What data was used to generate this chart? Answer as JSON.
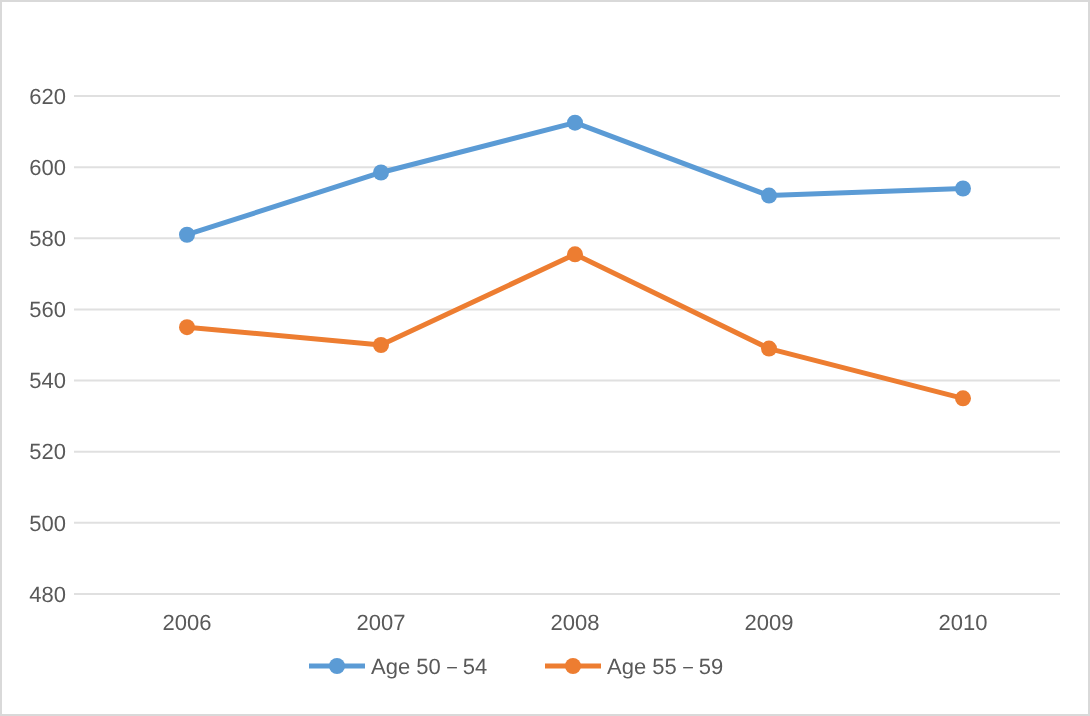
{
  "chart_data": {
    "type": "line",
    "categories": [
      "2006",
      "2007",
      "2008",
      "2009",
      "2010"
    ],
    "series": [
      {
        "name": "Age 50－54",
        "color": "#5b9bd5",
        "values": [
          581,
          598.5,
          612.5,
          592,
          594
        ]
      },
      {
        "name": "Age 55－59",
        "color": "#ed7d31",
        "values": [
          555,
          550,
          575.5,
          549,
          535
        ]
      }
    ],
    "ylim": [
      480,
      620
    ],
    "yticks": [
      480,
      500,
      520,
      540,
      560,
      580,
      600,
      620
    ],
    "grid": "y",
    "legend": "bottom",
    "marker": "circle",
    "line_style": "solid"
  }
}
